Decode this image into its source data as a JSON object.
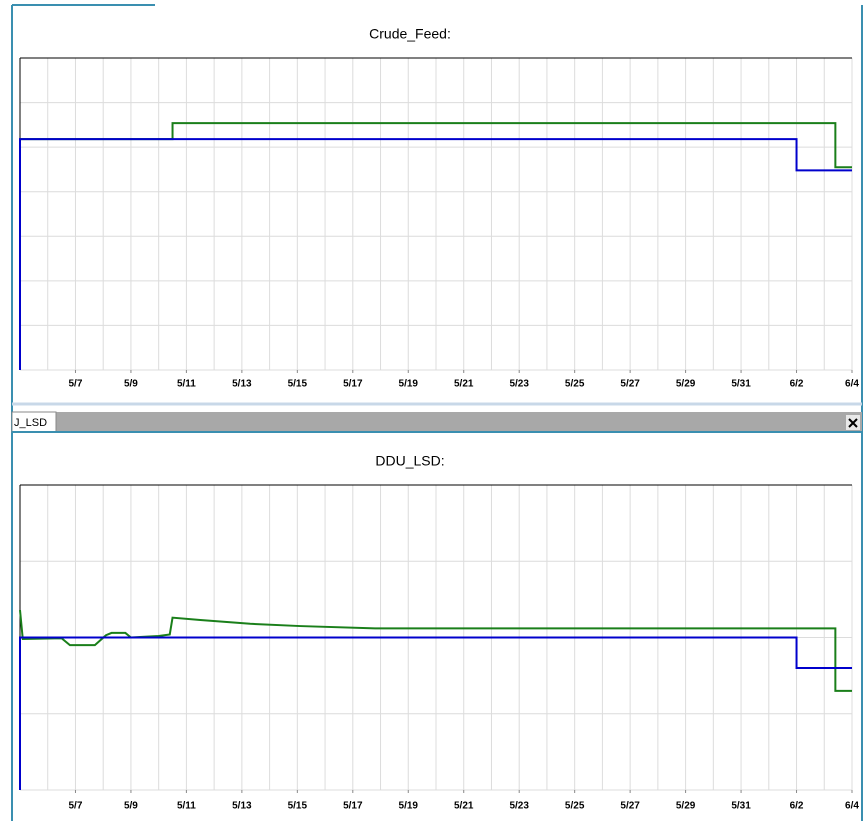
{
  "chart_data": [
    {
      "type": "line",
      "title": "Crude_Feed:",
      "xlim": [
        5,
        35
      ],
      "ylim": [
        0,
        7
      ],
      "grid": true,
      "xticks": [
        {
          "value": 7,
          "label": "5/7"
        },
        {
          "value": 9,
          "label": "5/9"
        },
        {
          "value": 11,
          "label": "5/11"
        },
        {
          "value": 13,
          "label": "5/13"
        },
        {
          "value": 15,
          "label": "5/15"
        },
        {
          "value": 17,
          "label": "5/17"
        },
        {
          "value": 19,
          "label": "5/19"
        },
        {
          "value": 21,
          "label": "5/21"
        },
        {
          "value": 23,
          "label": "5/23"
        },
        {
          "value": 25,
          "label": "5/25"
        },
        {
          "value": 27,
          "label": "5/27"
        },
        {
          "value": 29,
          "label": "5/29"
        },
        {
          "value": 31,
          "label": "5/31"
        },
        {
          "value": 33,
          "label": "6/2"
        },
        {
          "value": 35,
          "label": "6/4"
        }
      ],
      "series": [
        {
          "color": "#1a7f1a",
          "x": [
            5,
            10.5,
            10.5,
            34.4,
            34.4,
            35
          ],
          "values": [
            5.18,
            5.18,
            5.54,
            5.54,
            4.55,
            4.55
          ]
        },
        {
          "color": "#0000cc",
          "x": [
            5,
            5,
            33,
            33,
            35
          ],
          "values": [
            0,
            5.18,
            5.18,
            4.48,
            4.48
          ]
        }
      ]
    },
    {
      "type": "line",
      "title": "DDU_LSD:",
      "xlim": [
        5,
        35
      ],
      "ylim": [
        0,
        4
      ],
      "grid": true,
      "xticks": [
        {
          "value": 7,
          "label": "5/7"
        },
        {
          "value": 9,
          "label": "5/9"
        },
        {
          "value": 11,
          "label": "5/11"
        },
        {
          "value": 13,
          "label": "5/13"
        },
        {
          "value": 15,
          "label": "5/15"
        },
        {
          "value": 17,
          "label": "5/17"
        },
        {
          "value": 19,
          "label": "5/19"
        },
        {
          "value": 21,
          "label": "5/21"
        },
        {
          "value": 23,
          "label": "5/23"
        },
        {
          "value": 25,
          "label": "5/25"
        },
        {
          "value": 27,
          "label": "5/27"
        },
        {
          "value": 29,
          "label": "5/29"
        },
        {
          "value": 31,
          "label": "5/31"
        },
        {
          "value": 33,
          "label": "6/2"
        },
        {
          "value": 35,
          "label": "6/4"
        }
      ],
      "series": [
        {
          "color": "#1a7f1a",
          "x": [
            5,
            5.1,
            6.5,
            6.8,
            7.7,
            8.1,
            8.3,
            8.8,
            9.0,
            10.0,
            10.4,
            10.5,
            11.5,
            13.3,
            15.1,
            17.8,
            34.4,
            34.4,
            35
          ],
          "values": [
            2.36,
            1.98,
            1.99,
            1.9,
            1.9,
            2.03,
            2.06,
            2.06,
            2.0,
            2.02,
            2.04,
            2.26,
            2.23,
            2.18,
            2.15,
            2.12,
            2.12,
            1.3,
            1.3
          ]
        },
        {
          "color": "#0000cc",
          "x": [
            5,
            5,
            33,
            33,
            35
          ],
          "values": [
            0,
            2,
            2,
            1.6,
            1.6
          ]
        }
      ]
    }
  ],
  "tab": {
    "label": "J_LSD"
  }
}
